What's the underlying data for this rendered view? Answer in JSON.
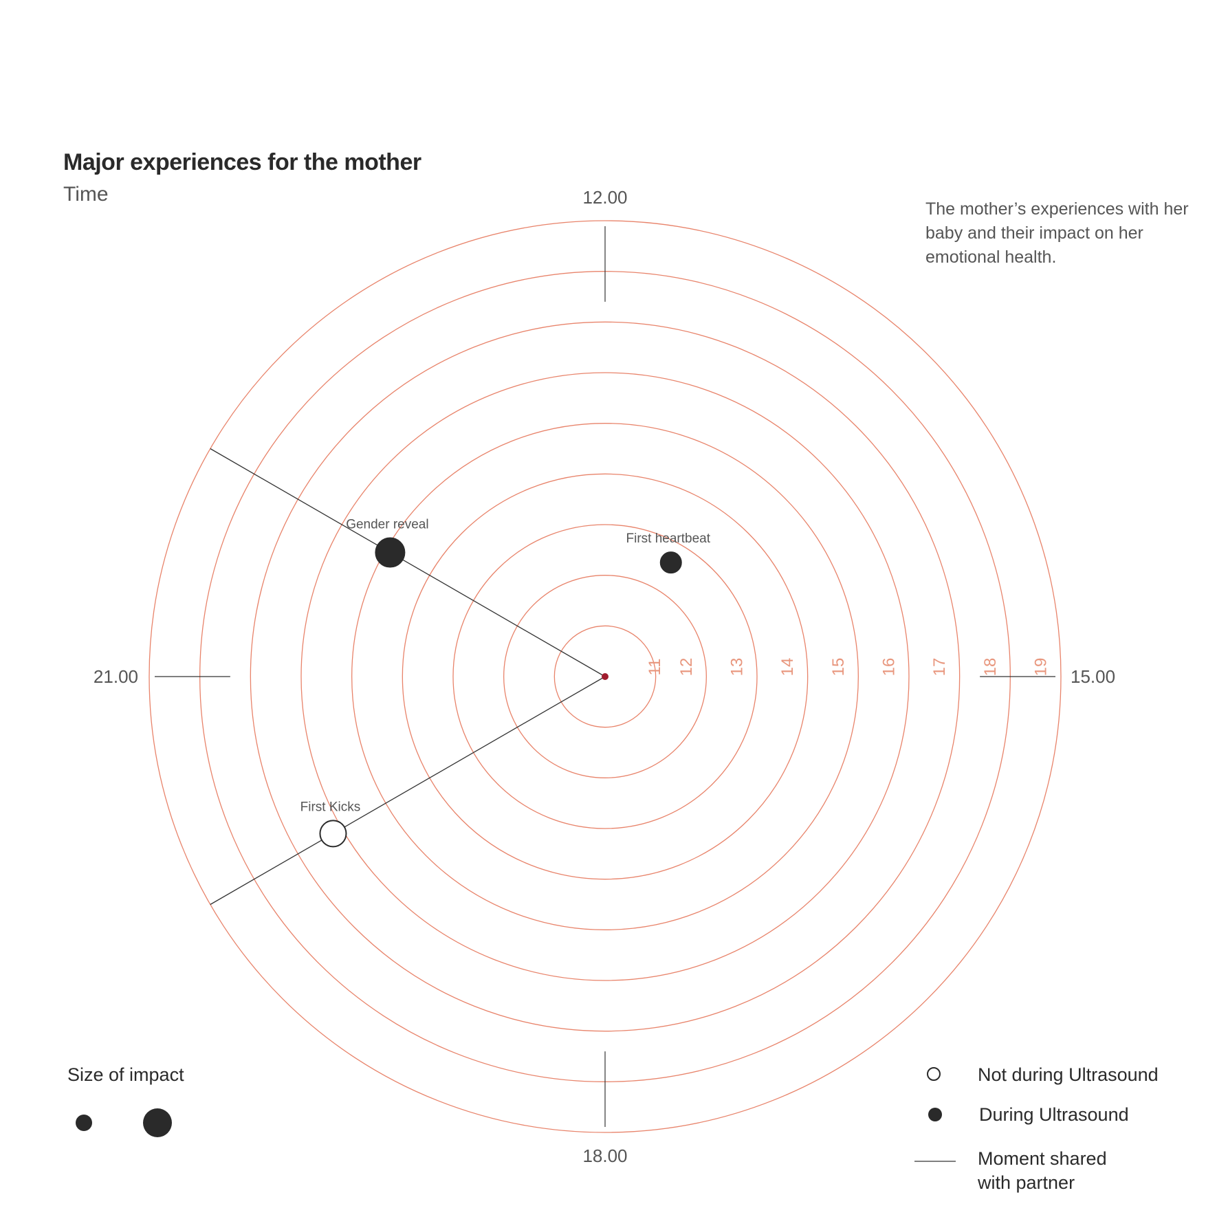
{
  "title": "Major experiences for the mother",
  "subtitle": "Time",
  "description": "The mother’s experiences with her baby and their impact on her emotional health.",
  "chart_data": {
    "type": "scatter",
    "coordinate_system": "polar",
    "title": "Major experiences for the mother",
    "subtitle": "Time",
    "angular_axis": {
      "tick_labels": [
        "12.00",
        "15.00",
        "18.00",
        "21.00"
      ]
    },
    "radial_axis": {
      "tick_labels": [
        "11",
        "12",
        "13",
        "14",
        "15",
        "16",
        "17",
        "18",
        "19"
      ],
      "range": [
        10,
        19
      ]
    },
    "points": [
      {
        "label": "First heartbeat",
        "time": "13.00",
        "radius": 12.6,
        "impact": "small",
        "during_ultrasound": true,
        "shared_with_partner": false
      },
      {
        "label": "Gender reveal",
        "time": "22.00",
        "radius": 14.9,
        "impact": "large",
        "during_ultrasound": true,
        "shared_with_partner": true
      },
      {
        "label": "First Kicks",
        "time": "20.00",
        "radius": 16.2,
        "impact": "medium",
        "during_ultrasound": false,
        "shared_with_partner": true
      }
    ],
    "colors": {
      "rings": "#e8836a",
      "ring_labels": "#e8967d",
      "center": "#a01c2e",
      "marker": "#2a2a2a",
      "axis_lines": "#333333"
    }
  },
  "legend": {
    "size_title": "Size of impact",
    "not_during": "Not during Ultrasound",
    "during": "During Ultrasound",
    "shared_line1": "Moment shared",
    "shared_line2": "with partner"
  }
}
